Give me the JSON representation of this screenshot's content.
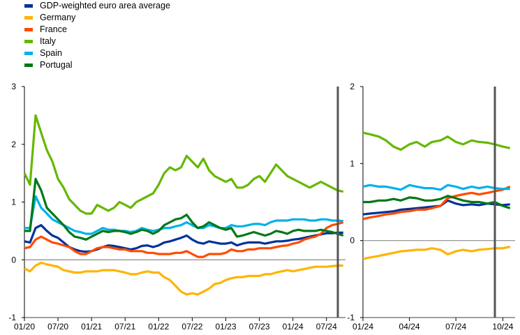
{
  "chart_data": [
    {
      "type": "line",
      "title": "",
      "xlabel": "",
      "ylabel": "",
      "ylim": [
        -1,
        3
      ],
      "yticks": [
        "3",
        "2",
        "1",
        "0",
        "-1"
      ],
      "xticks": [
        "01/20",
        "07/20",
        "01/21",
        "07/21",
        "01/22",
        "07/22",
        "01/23",
        "07/23",
        "01/24",
        "07/24"
      ],
      "x": [
        "2020-01",
        "2020-02",
        "2020-03",
        "2020-04",
        "2020-05",
        "2020-06",
        "2020-07",
        "2020-08",
        "2020-09",
        "2020-10",
        "2020-11",
        "2020-12",
        "2021-01",
        "2021-02",
        "2021-03",
        "2021-04",
        "2021-05",
        "2021-06",
        "2021-07",
        "2021-08",
        "2021-09",
        "2021-10",
        "2021-11",
        "2021-12",
        "2022-01",
        "2022-02",
        "2022-03",
        "2022-04",
        "2022-05",
        "2022-06",
        "2022-07",
        "2022-08",
        "2022-09",
        "2022-10",
        "2022-11",
        "2022-12",
        "2023-01",
        "2023-02",
        "2023-03",
        "2023-04",
        "2023-05",
        "2023-06",
        "2023-07",
        "2023-08",
        "2023-09",
        "2023-10",
        "2023-11",
        "2023-12",
        "2024-01",
        "2024-02",
        "2024-03",
        "2024-04",
        "2024-05",
        "2024-06",
        "2024-07",
        "2024-08",
        "2024-09",
        "2024-10"
      ],
      "series": [
        {
          "name": "GDP-weighted euro area average",
          "color": "#003299",
          "values": [
            0.32,
            0.3,
            0.55,
            0.6,
            0.5,
            0.42,
            0.38,
            0.3,
            0.22,
            0.18,
            0.15,
            0.14,
            0.15,
            0.18,
            0.22,
            0.25,
            0.24,
            0.22,
            0.2,
            0.18,
            0.2,
            0.24,
            0.25,
            0.22,
            0.25,
            0.3,
            0.32,
            0.35,
            0.38,
            0.42,
            0.35,
            0.3,
            0.28,
            0.32,
            0.3,
            0.28,
            0.28,
            0.3,
            0.25,
            0.28,
            0.3,
            0.3,
            0.3,
            0.28,
            0.3,
            0.32,
            0.32,
            0.33,
            0.35,
            0.36,
            0.38,
            0.4,
            0.42,
            0.44,
            0.46,
            0.46,
            0.47,
            0.47
          ]
        },
        {
          "name": "Germany",
          "color": "#FFB400",
          "values": [
            -0.15,
            -0.2,
            -0.1,
            -0.05,
            -0.08,
            -0.1,
            -0.12,
            -0.18,
            -0.2,
            -0.22,
            -0.22,
            -0.2,
            -0.2,
            -0.2,
            -0.18,
            -0.18,
            -0.18,
            -0.2,
            -0.22,
            -0.25,
            -0.25,
            -0.22,
            -0.2,
            -0.22,
            -0.22,
            -0.3,
            -0.35,
            -0.45,
            -0.55,
            -0.6,
            -0.58,
            -0.6,
            -0.55,
            -0.5,
            -0.42,
            -0.4,
            -0.35,
            -0.32,
            -0.3,
            -0.3,
            -0.28,
            -0.28,
            -0.28,
            -0.25,
            -0.25,
            -0.22,
            -0.2,
            -0.18,
            -0.2,
            -0.18,
            -0.16,
            -0.14,
            -0.12,
            -0.12,
            -0.12,
            -0.11,
            -0.1,
            -0.1
          ]
        },
        {
          "name": "France",
          "color": "#FF4B00",
          "values": [
            0.2,
            0.22,
            0.35,
            0.4,
            0.35,
            0.3,
            0.28,
            0.25,
            0.22,
            0.15,
            0.1,
            0.1,
            0.15,
            0.2,
            0.22,
            0.22,
            0.2,
            0.18,
            0.18,
            0.15,
            0.15,
            0.15,
            0.12,
            0.12,
            0.1,
            0.1,
            0.1,
            0.12,
            0.12,
            0.15,
            0.1,
            0.05,
            0.05,
            0.1,
            0.1,
            0.1,
            0.12,
            0.18,
            0.15,
            0.15,
            0.18,
            0.18,
            0.2,
            0.2,
            0.2,
            0.22,
            0.24,
            0.25,
            0.28,
            0.3,
            0.35,
            0.38,
            0.4,
            0.45,
            0.55,
            0.6,
            0.62,
            0.65
          ]
        },
        {
          "name": "Italy",
          "color": "#65B800",
          "values": [
            1.5,
            1.3,
            2.5,
            2.2,
            1.9,
            1.7,
            1.4,
            1.25,
            1.05,
            0.95,
            0.85,
            0.8,
            0.8,
            0.95,
            0.9,
            0.85,
            0.9,
            1.0,
            0.95,
            0.9,
            1.0,
            1.05,
            1.1,
            1.15,
            1.3,
            1.5,
            1.6,
            1.55,
            1.6,
            1.8,
            1.7,
            1.6,
            1.75,
            1.55,
            1.45,
            1.4,
            1.35,
            1.4,
            1.25,
            1.25,
            1.3,
            1.4,
            1.45,
            1.35,
            1.5,
            1.65,
            1.55,
            1.45,
            1.4,
            1.35,
            1.3,
            1.25,
            1.3,
            1.35,
            1.3,
            1.25,
            1.2,
            1.18
          ]
        },
        {
          "name": "Spain",
          "color": "#00B1EA",
          "values": [
            0.55,
            0.55,
            1.1,
            0.9,
            0.8,
            0.7,
            0.65,
            0.6,
            0.55,
            0.5,
            0.48,
            0.45,
            0.45,
            0.5,
            0.55,
            0.52,
            0.52,
            0.5,
            0.5,
            0.48,
            0.5,
            0.55,
            0.52,
            0.5,
            0.52,
            0.55,
            0.55,
            0.58,
            0.6,
            0.65,
            0.6,
            0.55,
            0.55,
            0.6,
            0.58,
            0.55,
            0.55,
            0.6,
            0.58,
            0.58,
            0.6,
            0.62,
            0.62,
            0.6,
            0.65,
            0.68,
            0.68,
            0.68,
            0.7,
            0.7,
            0.7,
            0.68,
            0.68,
            0.7,
            0.7,
            0.68,
            0.68,
            0.67
          ]
        },
        {
          "name": "Portugal",
          "color": "#007816",
          "values": [
            0.5,
            0.5,
            1.4,
            1.2,
            0.9,
            0.8,
            0.7,
            0.6,
            0.48,
            0.4,
            0.38,
            0.35,
            0.4,
            0.45,
            0.5,
            0.48,
            0.5,
            0.5,
            0.48,
            0.45,
            0.48,
            0.52,
            0.5,
            0.45,
            0.5,
            0.6,
            0.65,
            0.7,
            0.72,
            0.78,
            0.65,
            0.55,
            0.58,
            0.65,
            0.6,
            0.55,
            0.52,
            0.55,
            0.4,
            0.42,
            0.45,
            0.48,
            0.45,
            0.42,
            0.45,
            0.5,
            0.48,
            0.45,
            0.5,
            0.52,
            0.5,
            0.5,
            0.5,
            0.52,
            0.5,
            0.48,
            0.45,
            0.42
          ]
        }
      ]
    },
    {
      "type": "line",
      "title": "",
      "xlabel": "",
      "ylabel": "",
      "ylim": [
        -1,
        2
      ],
      "yticks": [
        "2",
        "1",
        "0",
        "-1"
      ],
      "xticks": [
        "01/24",
        "04/24",
        "07/24",
        "10/24"
      ],
      "x": [
        "2024-01-01",
        "2024-01-15",
        "2024-02-01",
        "2024-02-15",
        "2024-03-01",
        "2024-03-15",
        "2024-04-01",
        "2024-04-15",
        "2024-05-01",
        "2024-05-15",
        "2024-06-01",
        "2024-06-15",
        "2024-07-01",
        "2024-07-15",
        "2024-08-01",
        "2024-08-15",
        "2024-09-01",
        "2024-09-15",
        "2024-10-01",
        "2024-10-15"
      ],
      "series": [
        {
          "name": "GDP-weighted euro area average",
          "color": "#003299",
          "values": [
            0.34,
            0.35,
            0.36,
            0.37,
            0.38,
            0.4,
            0.41,
            0.42,
            0.43,
            0.44,
            0.45,
            0.52,
            0.48,
            0.46,
            0.47,
            0.46,
            0.48,
            0.47,
            0.46,
            0.47
          ]
        },
        {
          "name": "Germany",
          "color": "#FFB400",
          "values": [
            -0.24,
            -0.22,
            -0.2,
            -0.18,
            -0.16,
            -0.14,
            -0.13,
            -0.12,
            -0.12,
            -0.1,
            -0.12,
            -0.18,
            -0.14,
            -0.12,
            -0.14,
            -0.12,
            -0.11,
            -0.1,
            -0.1,
            -0.08
          ]
        },
        {
          "name": "France",
          "color": "#FF4B00",
          "values": [
            0.28,
            0.3,
            0.32,
            0.34,
            0.35,
            0.37,
            0.38,
            0.4,
            0.4,
            0.42,
            0.45,
            0.55,
            0.58,
            0.6,
            0.62,
            0.6,
            0.62,
            0.64,
            0.66,
            0.7
          ]
        },
        {
          "name": "Italy",
          "color": "#65B800",
          "values": [
            1.4,
            1.38,
            1.35,
            1.3,
            1.22,
            1.18,
            1.25,
            1.28,
            1.22,
            1.28,
            1.3,
            1.35,
            1.28,
            1.25,
            1.3,
            1.28,
            1.27,
            1.25,
            1.22,
            1.2
          ]
        },
        {
          "name": "Spain",
          "color": "#00B1EA",
          "values": [
            0.7,
            0.72,
            0.7,
            0.7,
            0.68,
            0.66,
            0.72,
            0.7,
            0.68,
            0.68,
            0.66,
            0.72,
            0.7,
            0.67,
            0.7,
            0.68,
            0.7,
            0.68,
            0.67,
            0.67
          ]
        },
        {
          "name": "Portugal",
          "color": "#007816",
          "values": [
            0.5,
            0.5,
            0.52,
            0.52,
            0.54,
            0.52,
            0.56,
            0.55,
            0.52,
            0.52,
            0.54,
            0.58,
            0.55,
            0.52,
            0.5,
            0.5,
            0.48,
            0.5,
            0.45,
            0.42
          ]
        }
      ]
    }
  ]
}
